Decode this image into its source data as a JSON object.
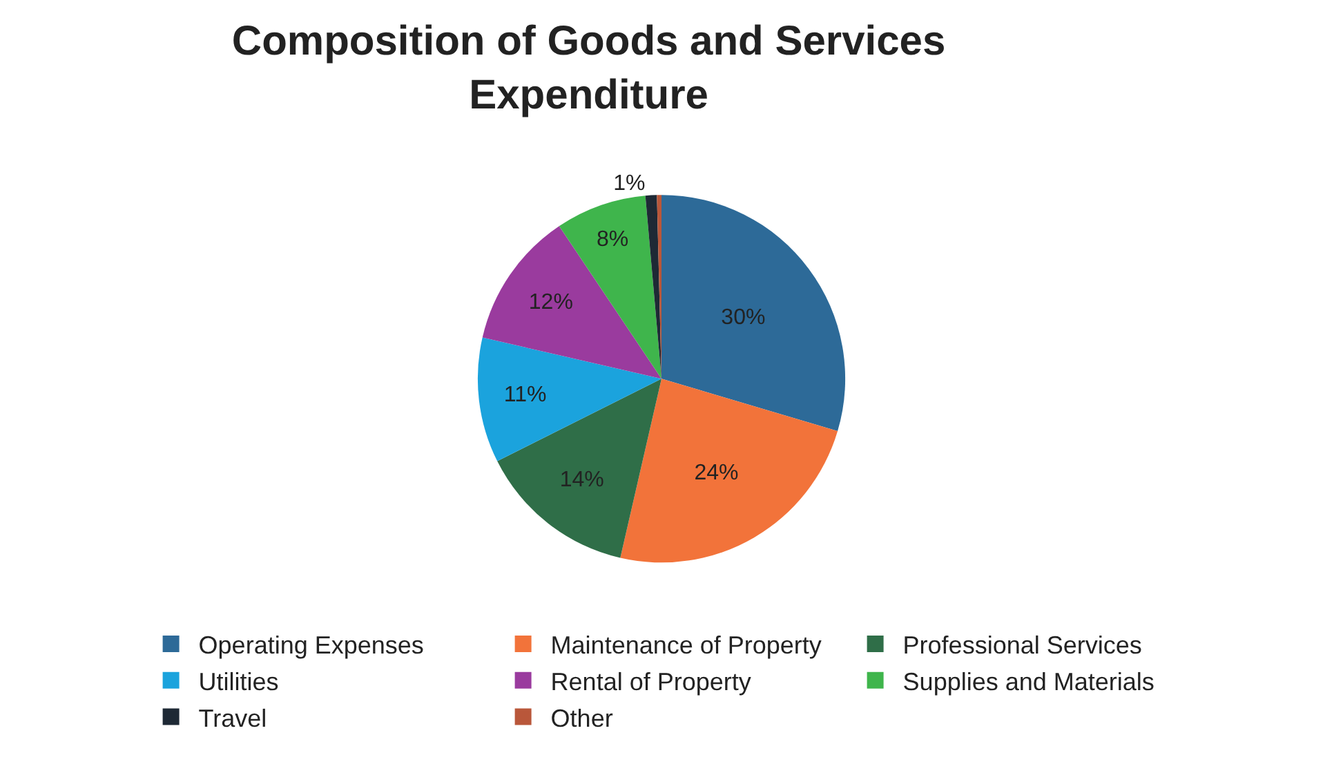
{
  "chart_data": {
    "type": "pie",
    "title": "Composition of Goods and Services\nExpenditure",
    "categories": [
      "Operating Expenses",
      "Maintenance of Property",
      "Professional Services",
      "Utilities",
      "Rental of Property",
      "Supplies and Materials",
      "Travel",
      "Other"
    ],
    "values": [
      29.6,
      24,
      14,
      11,
      12,
      8,
      1,
      0.4
    ],
    "value_labels": [
      "30%",
      "24%",
      "14%",
      "11%",
      "12%",
      "8%",
      "1%",
      null
    ],
    "colors": [
      "#2d6a98",
      "#f2733a",
      "#2f6e48",
      "#1ba3dd",
      "#9a3b9e",
      "#3fb54c",
      "#1e2935",
      "#b9573a"
    ],
    "legend": "bottom"
  }
}
